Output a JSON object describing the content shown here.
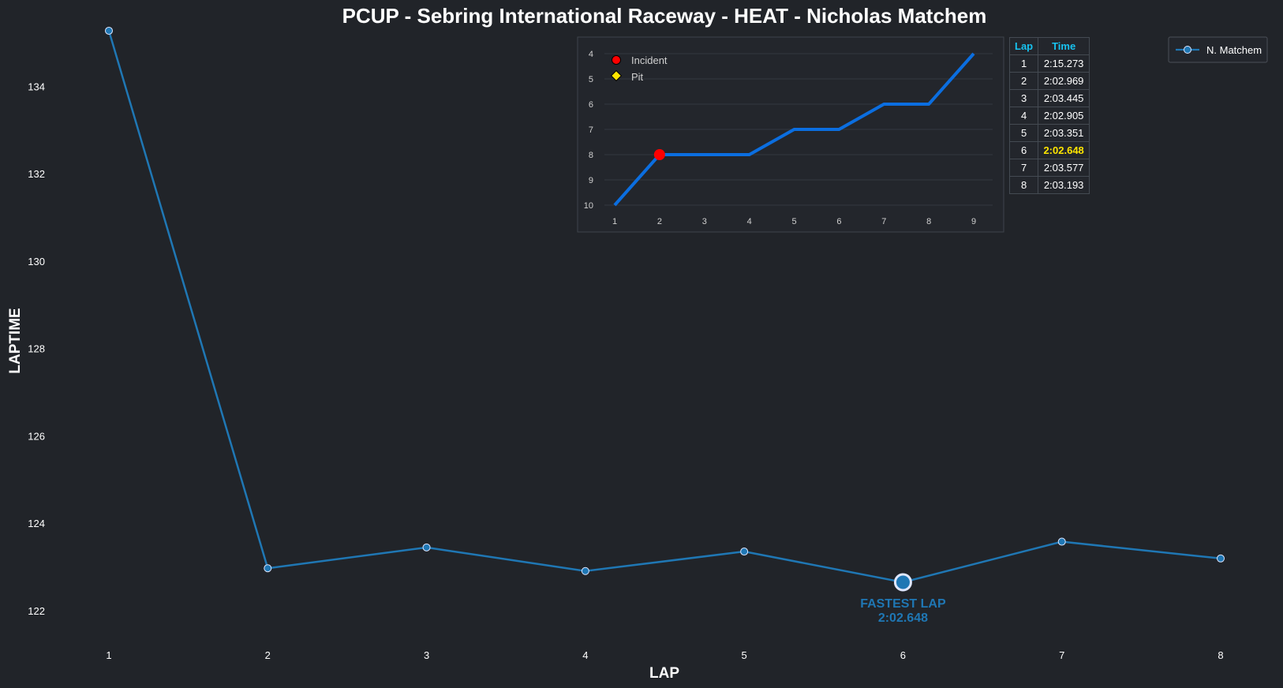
{
  "chart_data": [
    {
      "type": "line",
      "title": "PCUP - Sebring International Raceway - HEAT - Nicholas Matchem",
      "xlabel": "LAP",
      "ylabel": "LAPTIME",
      "x": [
        1,
        2,
        3,
        4,
        5,
        6,
        7,
        8
      ],
      "xlim": [
        0.5,
        8.5
      ],
      "ylim": [
        121.6,
        135.2
      ],
      "yticks": [
        122,
        124,
        126,
        128,
        130,
        132,
        134
      ],
      "series": [
        {
          "name": "N. Matchem",
          "values": [
            135.273,
            122.969,
            123.445,
            122.905,
            123.351,
            122.648,
            123.577,
            123.193
          ],
          "color": "#1f77b4"
        }
      ],
      "legend": "top-right",
      "grid": false,
      "annotation": {
        "x": 6,
        "y": 122.648,
        "line1": "FASTEST LAP",
        "line2": "2:02.648"
      }
    },
    {
      "type": "line",
      "title": "",
      "xlabel": "",
      "ylabel": "",
      "x": [
        1,
        2,
        3,
        4,
        5,
        6,
        7,
        8,
        9
      ],
      "positions": [
        10,
        8,
        8,
        8,
        7,
        7,
        6,
        6,
        4
      ],
      "yticks": [
        4,
        5,
        6,
        7,
        8,
        9,
        10
      ],
      "y_inverted": true,
      "grid": true,
      "color": "#0b6ee0",
      "incidents": [
        2
      ],
      "pits": [],
      "legend": [
        "Incident",
        "Pit"
      ],
      "legend_colors": [
        "#ff0000",
        "#ffe500"
      ]
    },
    {
      "type": "table",
      "columns": [
        "Lap",
        "Time"
      ],
      "rows": [
        [
          "1",
          "2:15.273"
        ],
        [
          "2",
          "2:02.969"
        ],
        [
          "3",
          "2:03.445"
        ],
        [
          "4",
          "2:02.905"
        ],
        [
          "5",
          "2:03.351"
        ],
        [
          "6",
          "2:02.648"
        ],
        [
          "7",
          "2:03.577"
        ],
        [
          "8",
          "2:03.193"
        ]
      ],
      "highlight_row": 5,
      "header_color": "#17c3f0",
      "highlight_color": "#ffe500"
    }
  ]
}
